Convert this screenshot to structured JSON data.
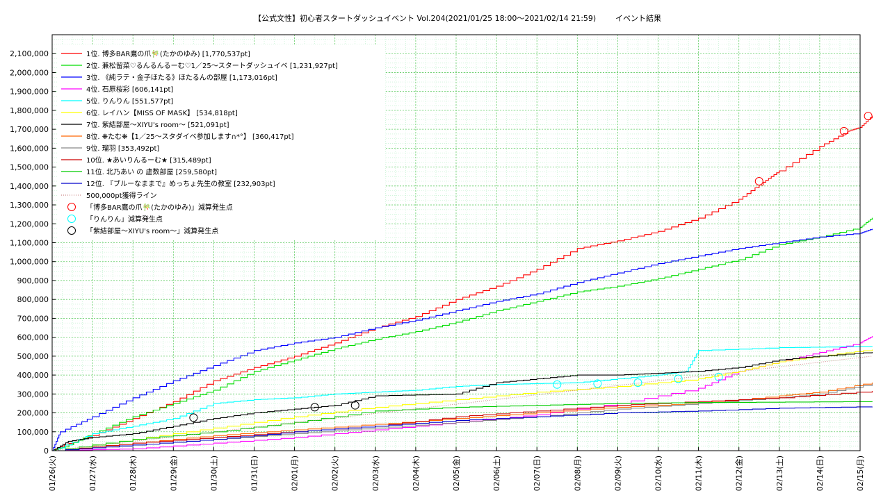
{
  "chart_data": {
    "type": "line",
    "title": "【公式文性】初心者スタートダッシュイベント Vol.204(2021/01/25 18:00〜2021/02/14 21:59)",
    "subtitle": "イベント結果",
    "ylim": [
      0,
      2200000
    ],
    "y_ticks": [
      "0",
      "100,000",
      "200,000",
      "300,000",
      "400,000",
      "500,000",
      "600,000",
      "700,000",
      "800,000",
      "900,000",
      "1,000,000",
      "1,100,000",
      "1,200,000",
      "1,300,000",
      "1,400,000",
      "1,500,000",
      "1,600,000",
      "1,700,000",
      "1,800,000",
      "1,900,000",
      "2,000,000",
      "2,100,000"
    ],
    "x_ticks": [
      "01/26(火)",
      "01/27(水)",
      "01/28(木)",
      "01/29(金)",
      "01/30(土)",
      "01/31(日)",
      "02/01(月)",
      "02/02(火)",
      "02/03(水)",
      "02/04(木)",
      "02/05(金)",
      "02/06(土)",
      "02/07(日)",
      "02/08(月)",
      "02/09(火)",
      "02/10(水)",
      "02/11(木)",
      "02/12(金)",
      "02/13(土)",
      "02/14(日)",
      "02/15(月)"
    ],
    "x_start": "01/26",
    "grid": true,
    "legend_position": "top-left",
    "series": [
      {
        "name": "1位. 博多BAR鷹の爪🎋(たかのゆみ) [1,770,537pt]",
        "color": "#ff0000",
        "points": [
          [
            0,
            0
          ],
          [
            0.3,
            30000
          ],
          [
            1,
            80000
          ],
          [
            2,
            170000
          ],
          [
            3,
            260000
          ],
          [
            4,
            370000
          ],
          [
            5,
            440000
          ],
          [
            6,
            500000
          ],
          [
            7,
            570000
          ],
          [
            8,
            650000
          ],
          [
            9,
            710000
          ],
          [
            10,
            800000
          ],
          [
            11,
            870000
          ],
          [
            12,
            960000
          ],
          [
            13,
            1070000
          ],
          [
            14,
            1110000
          ],
          [
            15,
            1160000
          ],
          [
            16,
            1230000
          ],
          [
            17,
            1330000
          ],
          [
            17.6,
            1420000
          ],
          [
            18,
            1480000
          ],
          [
            19,
            1610000
          ],
          [
            19.7,
            1690000
          ],
          [
            20,
            1710000
          ],
          [
            20.3,
            1770537
          ]
        ]
      },
      {
        "name": "2位. 兼松留菜♡るんるんるーむ♡1／25〜スタートダッシュイベ [1,231,927pt]",
        "color": "#00dd00",
        "points": [
          [
            0,
            0
          ],
          [
            0.3,
            20000
          ],
          [
            1,
            90000
          ],
          [
            2,
            180000
          ],
          [
            3,
            250000
          ],
          [
            4,
            320000
          ],
          [
            5,
            420000
          ],
          [
            6,
            480000
          ],
          [
            7,
            540000
          ],
          [
            8,
            590000
          ],
          [
            9,
            630000
          ],
          [
            10,
            680000
          ],
          [
            11,
            740000
          ],
          [
            12,
            790000
          ],
          [
            13,
            840000
          ],
          [
            14,
            870000
          ],
          [
            15,
            910000
          ],
          [
            16,
            960000
          ],
          [
            17,
            1010000
          ],
          [
            18,
            1090000
          ],
          [
            19,
            1130000
          ],
          [
            20,
            1180000
          ],
          [
            20.3,
            1231927
          ]
        ]
      },
      {
        "name": "3位. 《純ラテ・金子ほたる》ほたるんの部屋 [1,173,016pt]",
        "color": "#0000ff",
        "points": [
          [
            0,
            0
          ],
          [
            0.2,
            100000
          ],
          [
            1,
            180000
          ],
          [
            2,
            280000
          ],
          [
            3,
            370000
          ],
          [
            4,
            450000
          ],
          [
            5,
            530000
          ],
          [
            6,
            570000
          ],
          [
            7,
            600000
          ],
          [
            8,
            650000
          ],
          [
            9,
            690000
          ],
          [
            10,
            740000
          ],
          [
            11,
            790000
          ],
          [
            12,
            830000
          ],
          [
            13,
            890000
          ],
          [
            14,
            940000
          ],
          [
            15,
            990000
          ],
          [
            16,
            1030000
          ],
          [
            17,
            1070000
          ],
          [
            18,
            1100000
          ],
          [
            19,
            1130000
          ],
          [
            20,
            1150000
          ],
          [
            20.3,
            1173016
          ]
        ]
      },
      {
        "name": "4位. 石原桜彩 [606,141pt]",
        "color": "#ff00ff",
        "points": [
          [
            0,
            0
          ],
          [
            2,
            10000
          ],
          [
            4,
            40000
          ],
          [
            6,
            70000
          ],
          [
            8,
            110000
          ],
          [
            10,
            150000
          ],
          [
            12,
            190000
          ],
          [
            14,
            250000
          ],
          [
            16,
            330000
          ],
          [
            17,
            420000
          ],
          [
            18,
            470000
          ],
          [
            19,
            520000
          ],
          [
            20,
            570000
          ],
          [
            20.3,
            606141
          ]
        ]
      },
      {
        "name": "5位. りんりん [551,577pt]",
        "color": "#00ffff",
        "points": [
          [
            0,
            0
          ],
          [
            1,
            90000
          ],
          [
            2,
            130000
          ],
          [
            3,
            170000
          ],
          [
            4,
            250000
          ],
          [
            5,
            270000
          ],
          [
            6,
            280000
          ],
          [
            7,
            300000
          ],
          [
            8,
            310000
          ],
          [
            9,
            320000
          ],
          [
            10,
            340000
          ],
          [
            11,
            350000
          ],
          [
            12,
            355000
          ],
          [
            13,
            360000
          ],
          [
            14,
            380000
          ],
          [
            15,
            400000
          ],
          [
            15.7,
            420000
          ],
          [
            16,
            530000
          ],
          [
            18,
            545000
          ],
          [
            20.3,
            551577
          ]
        ]
      },
      {
        "name": "6位. レイハン【MISS OF MASK】 [534,818pt]",
        "color": "#ffff00",
        "points": [
          [
            0,
            0
          ],
          [
            2,
            60000
          ],
          [
            4,
            120000
          ],
          [
            6,
            180000
          ],
          [
            8,
            230000
          ],
          [
            10,
            270000
          ],
          [
            12,
            310000
          ],
          [
            14,
            340000
          ],
          [
            16,
            380000
          ],
          [
            17,
            420000
          ],
          [
            18,
            470000
          ],
          [
            19,
            500000
          ],
          [
            20.3,
            534818
          ]
        ]
      },
      {
        "name": "7位. 紫結部屋〜XIYU's room〜 [521,091pt]",
        "color": "#000000",
        "points": [
          [
            0,
            0
          ],
          [
            0.4,
            50000
          ],
          [
            1,
            70000
          ],
          [
            2,
            90000
          ],
          [
            3,
            130000
          ],
          [
            4,
            170000
          ],
          [
            5,
            200000
          ],
          [
            6,
            220000
          ],
          [
            7,
            240000
          ],
          [
            8,
            290000
          ],
          [
            10,
            300000
          ],
          [
            11,
            360000
          ],
          [
            12,
            380000
          ],
          [
            13,
            400000
          ],
          [
            14,
            400000
          ],
          [
            15,
            410000
          ],
          [
            16,
            420000
          ],
          [
            17,
            440000
          ],
          [
            18,
            480000
          ],
          [
            19,
            500000
          ],
          [
            20.3,
            521091
          ]
        ]
      },
      {
        "name": "8位. ❋たむ❋【1／25〜スタダイベ参加します∩*°】 [360,417pt]",
        "color": "#ff6600",
        "points": [
          [
            0,
            0
          ],
          [
            2,
            40000
          ],
          [
            4,
            80000
          ],
          [
            6,
            110000
          ],
          [
            8,
            140000
          ],
          [
            10,
            170000
          ],
          [
            12,
            200000
          ],
          [
            14,
            230000
          ],
          [
            16,
            250000
          ],
          [
            18,
            290000
          ],
          [
            19,
            310000
          ],
          [
            20.3,
            360417
          ]
        ]
      },
      {
        "name": "9位. 瑠羽 [353,492pt]",
        "color": "#888888",
        "points": [
          [
            0,
            0
          ],
          [
            2,
            30000
          ],
          [
            4,
            60000
          ],
          [
            6,
            90000
          ],
          [
            8,
            120000
          ],
          [
            10,
            150000
          ],
          [
            12,
            180000
          ],
          [
            14,
            220000
          ],
          [
            16,
            250000
          ],
          [
            18,
            280000
          ],
          [
            19,
            300000
          ],
          [
            20.3,
            353492
          ]
        ]
      },
      {
        "name": "10位. ★あいりんるーむ★ [315,489pt]",
        "color": "#cc0000",
        "points": [
          [
            0,
            0
          ],
          [
            2,
            40000
          ],
          [
            4,
            70000
          ],
          [
            6,
            100000
          ],
          [
            8,
            130000
          ],
          [
            10,
            180000
          ],
          [
            12,
            210000
          ],
          [
            14,
            240000
          ],
          [
            16,
            260000
          ],
          [
            18,
            280000
          ],
          [
            20.3,
            315489
          ]
        ]
      },
      {
        "name": "11位. 北乃あい の 虚数部屋 [259,580pt]",
        "color": "#00cc00",
        "points": [
          [
            0,
            0
          ],
          [
            2,
            60000
          ],
          [
            4,
            100000
          ],
          [
            6,
            150000
          ],
          [
            8,
            210000
          ],
          [
            10,
            230000
          ],
          [
            12,
            240000
          ],
          [
            14,
            250000
          ],
          [
            16,
            255000
          ],
          [
            20.3,
            259580
          ]
        ]
      },
      {
        "name": "12位. 『ブルーなままで』めっちょ先生の教室 [232,903pt]",
        "color": "#0000cc",
        "points": [
          [
            0,
            0
          ],
          [
            2,
            30000
          ],
          [
            4,
            60000
          ],
          [
            6,
            100000
          ],
          [
            8,
            130000
          ],
          [
            10,
            160000
          ],
          [
            12,
            180000
          ],
          [
            14,
            200000
          ],
          [
            16,
            210000
          ],
          [
            18,
            225000
          ],
          [
            20.3,
            232903
          ]
        ]
      },
      {
        "name": "500,000pt獲得ライン",
        "color": "#cc8888",
        "dotted": true,
        "points": [
          [
            0,
            0
          ],
          [
            20.3,
            500000
          ]
        ]
      }
    ],
    "markers": [
      {
        "name": "「博多BAR鷹の爪🎋(たかのゆみ)」減算発生点",
        "color": "#ff0000",
        "points": [
          [
            17.5,
            1425000
          ],
          [
            19.6,
            1690000
          ],
          [
            20.2,
            1770000
          ]
        ]
      },
      {
        "name": "「りんりん」減算発生点",
        "color": "#00ffff",
        "points": [
          [
            12.5,
            350000
          ],
          [
            13.5,
            355000
          ],
          [
            14.5,
            360000
          ],
          [
            15.5,
            380000
          ],
          [
            16.5,
            390000
          ]
        ]
      },
      {
        "name": "「紫結部屋〜XIYU's room〜」減算発生点",
        "color": "#000000",
        "points": [
          [
            3.5,
            175000
          ],
          [
            6.5,
            230000
          ],
          [
            7.5,
            240000
          ]
        ]
      }
    ]
  }
}
